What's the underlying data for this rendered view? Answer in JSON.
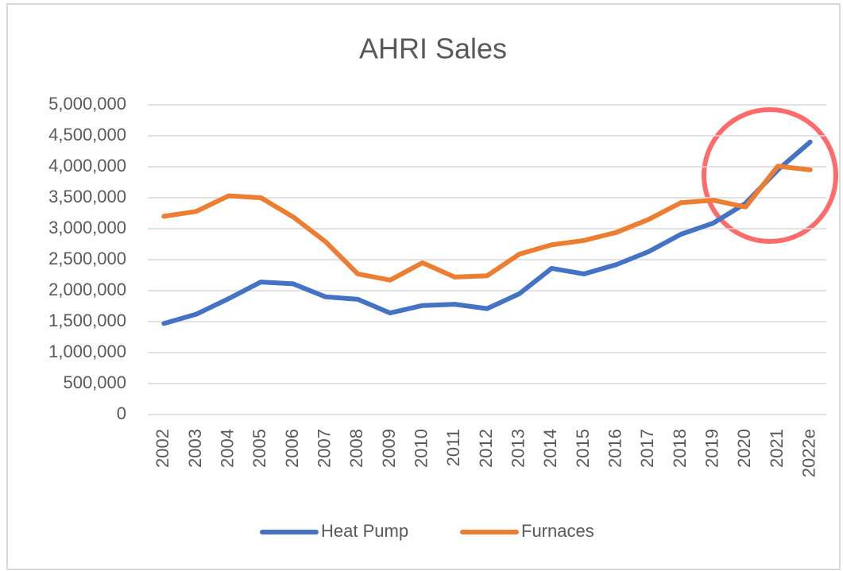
{
  "chart_data": {
    "type": "line",
    "title": "AHRI Sales",
    "categories": [
      "2002",
      "2003",
      "2004",
      "2005",
      "2006",
      "2007",
      "2008",
      "2009",
      "2010",
      "2011",
      "2012",
      "2013",
      "2014",
      "2015",
      "2016",
      "2017",
      "2018",
      "2019",
      "2020",
      "2021",
      "2022e"
    ],
    "series": [
      {
        "name": "Heat Pump",
        "color": "#4472c4",
        "values": [
          1470000,
          1620000,
          1870000,
          2140000,
          2110000,
          1900000,
          1860000,
          1640000,
          1760000,
          1780000,
          1710000,
          1950000,
          2360000,
          2270000,
          2420000,
          2630000,
          2910000,
          3090000,
          3410000,
          3950000,
          4400000
        ]
      },
      {
        "name": "Furnaces",
        "color": "#ed7d31",
        "values": [
          3200000,
          3280000,
          3530000,
          3500000,
          3190000,
          2790000,
          2270000,
          2170000,
          2450000,
          2220000,
          2240000,
          2590000,
          2740000,
          2810000,
          2940000,
          3150000,
          3420000,
          3460000,
          3350000,
          4010000,
          3950000
        ]
      }
    ],
    "ylim": [
      0,
      5000000
    ],
    "yticks": [
      0,
      {
        "value": 500000,
        "label": "500,000"
      },
      {
        "value": 1000000,
        "label": "1,000,000"
      },
      {
        "value": 1500000,
        "label": "1,500,000"
      },
      {
        "value": 2000000,
        "label": "2,000,000"
      },
      {
        "value": 2500000,
        "label": "2,500,000"
      },
      {
        "value": 3000000,
        "label": "3,000,000"
      },
      {
        "value": 3500000,
        "label": "3,500,000"
      },
      {
        "value": 4000000,
        "label": "4,000,000"
      },
      {
        "value": 4500000,
        "label": "4,500,000"
      },
      {
        "value": 5000000,
        "label": "5,000,000"
      }
    ],
    "grid": true,
    "legend": "bottom"
  }
}
